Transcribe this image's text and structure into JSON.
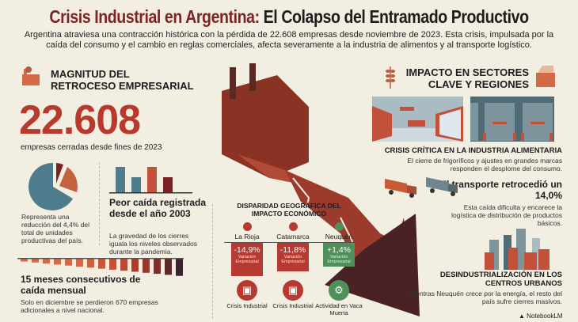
{
  "header": {
    "title_red": "Crisis Industrial en Argentina:",
    "title_black": "El Colapso del Entramado Productivo",
    "subtitle": "Argentina atraviesa una contracción histórica con la pérdida de 22.608 empresas desde noviembre de 2023. Esta crisis, impulsada por la caída del consumo y el cambio en reglas comerciales, afecta severamente a la industria de alimentos y al transporte logístico."
  },
  "left": {
    "heading_line1": "MAGNITUD DEL",
    "heading_line2": "RETROCESO EMPRESARIAL",
    "big_number": "22.608",
    "big_caption": "empresas cerradas desde fines de 2023",
    "pie_text": "Representa una reducción del 4,4% del total de unidades productivas del país.",
    "pie_share_percent": 4.4,
    "worst_title": "Peor caída registrada desde el año 2003",
    "worst_text": "La gravedad de los cierres iguala los niveles observados durante la pandemia.",
    "months_title": "15 meses consecutivos de caída mensual",
    "months_text": "Solo en diciembre se perdieron 670 empresas adicionales a nivel nacional."
  },
  "geo": {
    "title": "DISPARIDAD GEOGRÁFICA DEL IMPACTO ECONÓMICO",
    "regions": [
      {
        "name": "La Rioja",
        "value": "-14,9%",
        "sub": "Variación Empresarial",
        "label": "Crisis Industrial",
        "color": "#b63a31",
        "icon": "factory-icon"
      },
      {
        "name": "Catamarca",
        "value": "-11,8%",
        "sub": "Variación Empresarial",
        "label": "Crisis Industrial",
        "color": "#b63a31",
        "icon": "factory-icon"
      },
      {
        "name": "Neuquén",
        "value": "+1,4%",
        "sub": "Variación Empresarial",
        "label": "Actividad en Vaca Muerta",
        "color": "#4f8f5a",
        "icon": "oil-pump-icon"
      }
    ]
  },
  "right": {
    "heading_line1": "IMPACTO EN SECTORES",
    "heading_line2": "CLAVE Y REGIONES",
    "food_title": "CRISIS CRÍTICA EN LA INDUSTRIA ALIMENTARIA",
    "food_text": "El cierre de frigoríficos y ajustes en grandes marcas responden el desplome del consumo.",
    "transport_title": "El transporte retrocedió un 14,0%",
    "transport_text": "Esta caída dificulta y encarece la logística de distribución de productos básicos.",
    "urban_title": "DESINDUSTRIALIZACIÓN EN LOS CENTROS URBANOS",
    "urban_text": "Mientras Neuquén crece por la energía, el resto del país sufre cierres masivos."
  },
  "footer": {
    "brand": "NotebookLM"
  }
}
